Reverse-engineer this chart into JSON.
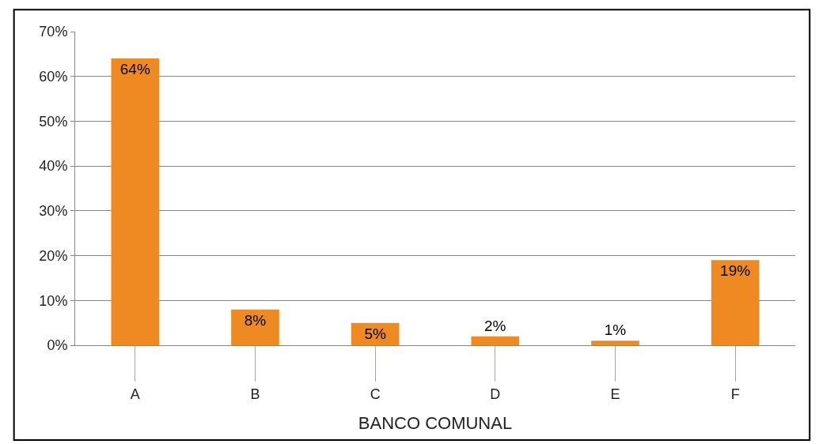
{
  "chart_data": {
    "type": "bar",
    "xlabel": "BANCO COMUNAL",
    "categories": [
      "A",
      "B",
      "C",
      "D",
      "E",
      "F"
    ],
    "values": [
      64,
      8,
      5,
      2,
      1,
      19
    ],
    "color": "#ef8a22",
    "value_labels": [
      "64%",
      "8%",
      "5%",
      "2%",
      "1%",
      "19%"
    ],
    "ylim": [
      0,
      70
    ],
    "yticks": [
      {
        "value": 0,
        "label": "0%"
      },
      {
        "value": 10,
        "label": "10%"
      },
      {
        "value": 20,
        "label": "20%"
      },
      {
        "value": 30,
        "label": "30%"
      },
      {
        "value": 40,
        "label": "40%"
      },
      {
        "value": 50,
        "label": "50%"
      },
      {
        "value": 60,
        "label": "60%"
      },
      {
        "value": 70,
        "label": "70%"
      }
    ],
    "grid": "y",
    "legend": false
  }
}
